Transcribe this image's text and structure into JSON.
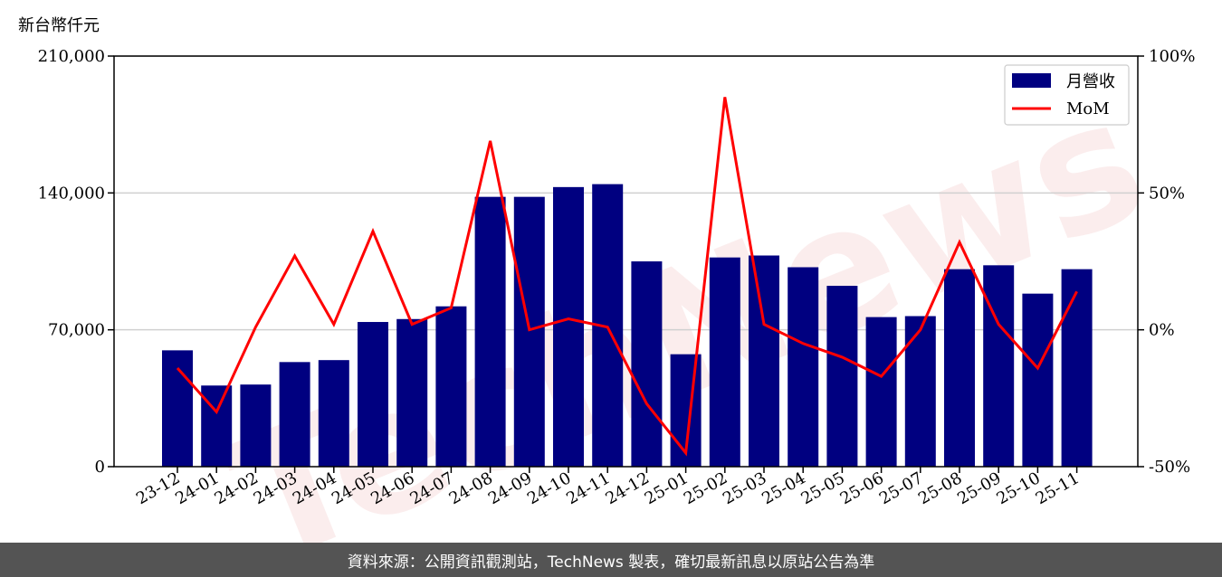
{
  "footer": {
    "source_text": "資料來源：公開資訊觀測站，TechNews 製表，確切最新訊息以原站公告為準"
  },
  "watermark": {
    "text": "TechNews"
  },
  "chart_data": {
    "type": "bar",
    "categories": [
      "23-12",
      "24-01",
      "24-02",
      "24-03",
      "24-04",
      "24-05",
      "24-06",
      "24-07",
      "24-08",
      "24-09",
      "24-10",
      "24-11",
      "24-12",
      "25-01",
      "25-02",
      "25-03",
      "25-04",
      "25-05",
      "25-06",
      "25-07",
      "25-08",
      "25-09",
      "25-10",
      "25-11"
    ],
    "series": [
      {
        "name": "月營收",
        "type": "bar",
        "axis": "left",
        "color": "#000080",
        "values": [
          59500,
          41500,
          42000,
          53500,
          54500,
          74000,
          75500,
          82000,
          138000,
          138000,
          143000,
          144500,
          105000,
          57500,
          107000,
          108000,
          102000,
          92500,
          76500,
          77000,
          101000,
          103000,
          88500,
          101000
        ]
      },
      {
        "name": "MoM",
        "type": "line",
        "axis": "right",
        "color": "#ff0000",
        "values": [
          -14,
          -30,
          1,
          27,
          2,
          36,
          2,
          8,
          69,
          0,
          4,
          1,
          -27,
          -45,
          85,
          2,
          -5,
          -10,
          -17,
          0,
          32,
          2,
          -14,
          14
        ]
      }
    ],
    "left_axis": {
      "unit_label": "新台幣仟元",
      "ylim": [
        0,
        210000
      ],
      "ticks": [
        0,
        70000,
        140000,
        210000
      ],
      "tick_labels": [
        "0",
        "70,000",
        "140,000",
        "210,000"
      ]
    },
    "right_axis": {
      "ylim": [
        -50,
        100
      ],
      "ticks": [
        -50,
        0,
        50,
        100
      ],
      "tick_labels": [
        "-50%",
        "0%",
        "50%",
        "100%"
      ]
    },
    "grid": {
      "y": true,
      "x": false
    },
    "legend": {
      "position": "top-right"
    }
  }
}
